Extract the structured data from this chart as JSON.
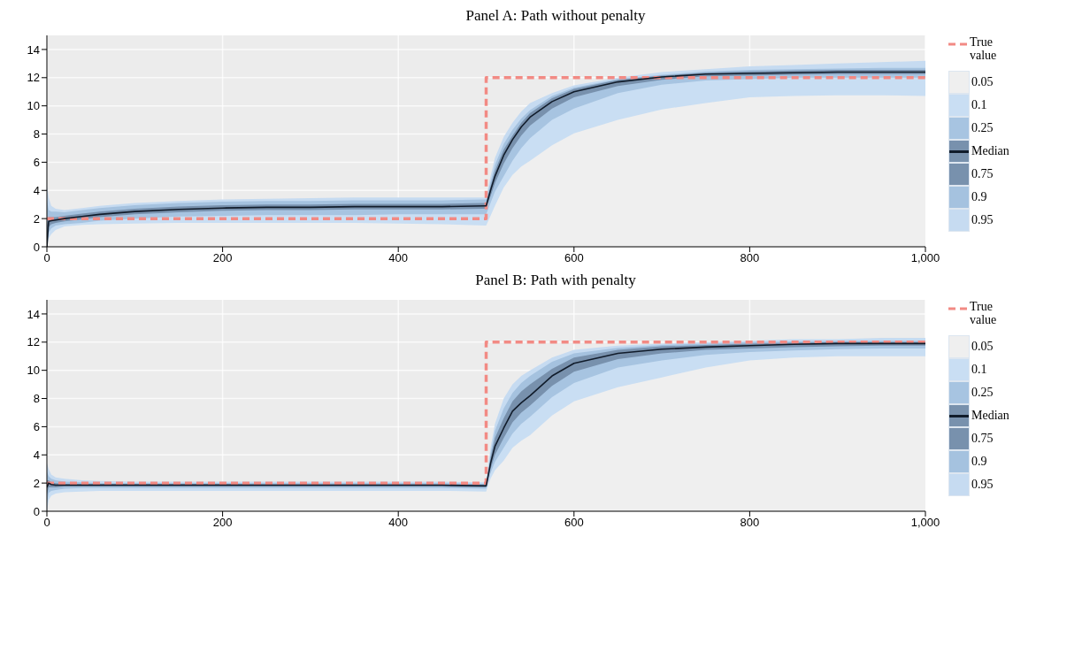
{
  "chart_data": [
    {
      "type": "line",
      "title": "Panel A: Path without penalty",
      "legend": "right",
      "grid": true,
      "xlim": [
        0,
        1000
      ],
      "xticks": [
        0,
        200,
        400,
        600,
        800,
        {
          "value": 1000,
          "label": "1,000"
        }
      ],
      "ylim": [
        0,
        15
      ],
      "yticks": [
        0,
        2,
        4,
        6,
        8,
        10,
        12,
        14
      ],
      "x": [
        0,
        2,
        5,
        10,
        20,
        40,
        60,
        100,
        150,
        200,
        250,
        300,
        350,
        400,
        450,
        499,
        500,
        505,
        510,
        520,
        530,
        540,
        550,
        575,
        600,
        650,
        700,
        750,
        800,
        850,
        900,
        950,
        1000
      ],
      "series": [
        {
          "name": "0.95",
          "type": "area",
          "color": "#c6dbf1",
          "values": [
            4.3,
            3.5,
            2.9,
            2.7,
            2.6,
            2.75,
            2.9,
            3.1,
            3.25,
            3.35,
            3.4,
            3.45,
            3.5,
            3.5,
            3.5,
            3.5,
            3.5,
            5.0,
            6.3,
            7.8,
            8.8,
            9.6,
            10.2,
            10.9,
            11.45,
            12.0,
            12.4,
            12.6,
            12.8,
            12.9,
            13.0,
            13.1,
            13.2
          ]
        },
        {
          "name": "0.9",
          "type": "area",
          "color": "#a5c2df",
          "values": [
            3.3,
            2.6,
            2.5,
            2.5,
            2.45,
            2.6,
            2.75,
            2.95,
            3.1,
            3.2,
            3.25,
            3.25,
            3.3,
            3.3,
            3.3,
            3.35,
            3.35,
            4.6,
            5.8,
            7.3,
            8.3,
            9.1,
            9.7,
            10.7,
            11.3,
            11.9,
            12.2,
            12.45,
            12.55,
            12.6,
            12.65,
            12.7,
            12.7
          ]
        },
        {
          "name": "0.75",
          "type": "area",
          "color": "#7891ad",
          "values": [
            1.5,
            2.1,
            2.1,
            2.1,
            2.2,
            2.35,
            2.5,
            2.7,
            2.85,
            2.95,
            3.0,
            3.0,
            3.05,
            3.05,
            3.05,
            3.1,
            3.1,
            4.3,
            5.4,
            6.9,
            7.9,
            8.8,
            9.5,
            10.55,
            11.2,
            11.85,
            12.15,
            12.35,
            12.45,
            12.5,
            12.55,
            12.55,
            12.55
          ]
        },
        {
          "name": "0.25",
          "type": "area",
          "color": "#a7c4e1",
          "values": [
            0,
            1.4,
            1.6,
            1.7,
            1.8,
            1.95,
            2.1,
            2.3,
            2.45,
            2.55,
            2.6,
            2.6,
            2.65,
            2.65,
            2.65,
            2.7,
            2.7,
            3.6,
            4.5,
            5.9,
            7.0,
            7.9,
            8.6,
            9.8,
            10.6,
            11.4,
            11.85,
            12.1,
            12.15,
            12.2,
            12.25,
            12.25,
            12.25
          ]
        },
        {
          "name": "0.1",
          "type": "area",
          "color": "#c9def3",
          "values": [
            0,
            1.0,
            1.3,
            1.5,
            1.6,
            1.7,
            1.85,
            2.0,
            2.15,
            2.2,
            2.25,
            2.25,
            2.25,
            2.3,
            2.3,
            2.3,
            2.3,
            3.1,
            3.9,
            5.0,
            6.1,
            7.0,
            7.7,
            9.0,
            9.8,
            10.9,
            11.5,
            11.8,
            11.9,
            12.0,
            12.0,
            12.0,
            12.0
          ]
        },
        {
          "name": "0.05",
          "type": "area",
          "color": "#efefef",
          "values": [
            0,
            0.6,
            0.9,
            1.2,
            1.45,
            1.55,
            1.6,
            1.65,
            1.7,
            1.7,
            1.7,
            1.7,
            1.7,
            1.65,
            1.6,
            1.5,
            1.5,
            2.2,
            2.9,
            4.2,
            5.1,
            5.7,
            6.1,
            7.2,
            8.05,
            9.0,
            9.75,
            10.2,
            10.6,
            10.7,
            10.75,
            10.75,
            10.7
          ]
        },
        {
          "name": "True value",
          "type": "step",
          "line_style": "dashed",
          "color": "#f28a84",
          "values": [
            2,
            2,
            2,
            2,
            2,
            2,
            2,
            2,
            2,
            2,
            2,
            2,
            2,
            2,
            2,
            2,
            12,
            12,
            12,
            12,
            12,
            12,
            12,
            12,
            12,
            12,
            12,
            12,
            12,
            12,
            12,
            12,
            12
          ]
        },
        {
          "name": "Median",
          "type": "line",
          "color": "#111c2b",
          "values": [
            0,
            1.8,
            1.85,
            1.9,
            2.0,
            2.15,
            2.3,
            2.5,
            2.65,
            2.75,
            2.8,
            2.8,
            2.85,
            2.85,
            2.85,
            2.9,
            2.9,
            4.0,
            5.0,
            6.5,
            7.6,
            8.5,
            9.2,
            10.3,
            11.0,
            11.7,
            12.05,
            12.25,
            12.3,
            12.35,
            12.4,
            12.4,
            12.4
          ]
        }
      ]
    },
    {
      "type": "line",
      "title": "Panel B: Path with penalty",
      "legend": "right",
      "grid": true,
      "xlim": [
        0,
        1000
      ],
      "xticks": [
        0,
        200,
        400,
        600,
        800,
        {
          "value": 1000,
          "label": "1,000"
        }
      ],
      "ylim": [
        0,
        15
      ],
      "yticks": [
        0,
        2,
        4,
        6,
        8,
        10,
        12,
        14
      ],
      "x": [
        0,
        2,
        5,
        10,
        20,
        40,
        60,
        100,
        150,
        200,
        250,
        300,
        350,
        400,
        450,
        499,
        500,
        505,
        510,
        520,
        530,
        540,
        550,
        575,
        600,
        650,
        700,
        750,
        800,
        850,
        900,
        950,
        1000
      ],
      "series": [
        {
          "name": "0.95",
          "type": "area",
          "color": "#c6dbf1",
          "values": [
            3.4,
            3.0,
            2.6,
            2.4,
            2.3,
            2.2,
            2.15,
            2.1,
            2.1,
            2.1,
            2.1,
            2.1,
            2.1,
            2.1,
            2.1,
            2.05,
            2.05,
            4.5,
            6.2,
            8.0,
            9.0,
            9.6,
            10.0,
            10.9,
            11.45,
            11.75,
            11.9,
            12.0,
            12.1,
            12.2,
            12.2,
            12.3,
            12.3
          ]
        },
        {
          "name": "0.9",
          "type": "area",
          "color": "#a5c2df",
          "values": [
            2.8,
            2.5,
            2.3,
            2.2,
            2.1,
            2.05,
            2.0,
            2.0,
            2.0,
            2.0,
            2.0,
            2.0,
            2.0,
            2.0,
            2.0,
            1.95,
            1.95,
            4.1,
            5.7,
            7.3,
            8.4,
            9.1,
            9.6,
            10.6,
            11.2,
            11.6,
            11.8,
            11.9,
            12.0,
            12.05,
            12.1,
            12.1,
            12.1
          ]
        },
        {
          "name": "0.75",
          "type": "area",
          "color": "#7891ad",
          "values": [
            2.2,
            2.2,
            2.05,
            2.0,
            1.95,
            1.95,
            1.95,
            1.95,
            1.95,
            1.95,
            1.9,
            1.9,
            1.9,
            1.9,
            1.9,
            1.9,
            1.9,
            3.8,
            5.2,
            6.6,
            7.8,
            8.5,
            9.0,
            10.1,
            10.9,
            11.45,
            11.7,
            11.8,
            11.9,
            11.95,
            12.0,
            12.0,
            12.0
          ]
        },
        {
          "name": "0.25",
          "type": "area",
          "color": "#a7c4e1",
          "values": [
            1.2,
            1.7,
            1.7,
            1.7,
            1.75,
            1.75,
            1.75,
            1.75,
            1.75,
            1.75,
            1.75,
            1.75,
            1.75,
            1.75,
            1.75,
            1.7,
            1.7,
            3.0,
            4.0,
            5.2,
            6.3,
            7.0,
            7.5,
            8.9,
            9.9,
            10.8,
            11.2,
            11.45,
            11.55,
            11.65,
            11.7,
            11.75,
            11.75
          ]
        },
        {
          "name": "0.1",
          "type": "area",
          "color": "#c9def3",
          "values": [
            0.6,
            1.3,
            1.45,
            1.5,
            1.6,
            1.65,
            1.65,
            1.65,
            1.65,
            1.65,
            1.65,
            1.65,
            1.65,
            1.65,
            1.65,
            1.6,
            1.6,
            2.7,
            3.5,
            4.5,
            5.5,
            6.2,
            6.7,
            8.1,
            9.1,
            10.2,
            10.7,
            11.1,
            11.3,
            11.4,
            11.5,
            11.55,
            11.55
          ]
        },
        {
          "name": "0.05",
          "type": "area",
          "color": "#efefef",
          "values": [
            0,
            0.8,
            1.1,
            1.25,
            1.35,
            1.4,
            1.45,
            1.45,
            1.45,
            1.45,
            1.45,
            1.45,
            1.45,
            1.45,
            1.45,
            1.4,
            1.4,
            2.3,
            2.9,
            3.6,
            4.5,
            5.0,
            5.4,
            6.8,
            7.8,
            8.8,
            9.5,
            10.2,
            10.7,
            10.9,
            11.0,
            11.0,
            11.0
          ]
        },
        {
          "name": "True value",
          "type": "step",
          "line_style": "dashed",
          "color": "#f28a84",
          "values": [
            2,
            2,
            2,
            2,
            2,
            2,
            2,
            2,
            2,
            2,
            2,
            2,
            2,
            2,
            2,
            2,
            12,
            12,
            12,
            12,
            12,
            12,
            12,
            12,
            12,
            12,
            12,
            12,
            12,
            12,
            12,
            12,
            12
          ]
        },
        {
          "name": "Median",
          "type": "line",
          "color": "#111c2b",
          "values": [
            1.7,
            2.0,
            1.9,
            1.85,
            1.85,
            1.85,
            1.85,
            1.85,
            1.85,
            1.85,
            1.85,
            1.85,
            1.85,
            1.85,
            1.85,
            1.8,
            1.8,
            3.4,
            4.6,
            5.9,
            7.1,
            7.7,
            8.2,
            9.6,
            10.5,
            11.2,
            11.5,
            11.65,
            11.75,
            11.85,
            11.9,
            11.9,
            11.9
          ]
        }
      ]
    }
  ]
}
